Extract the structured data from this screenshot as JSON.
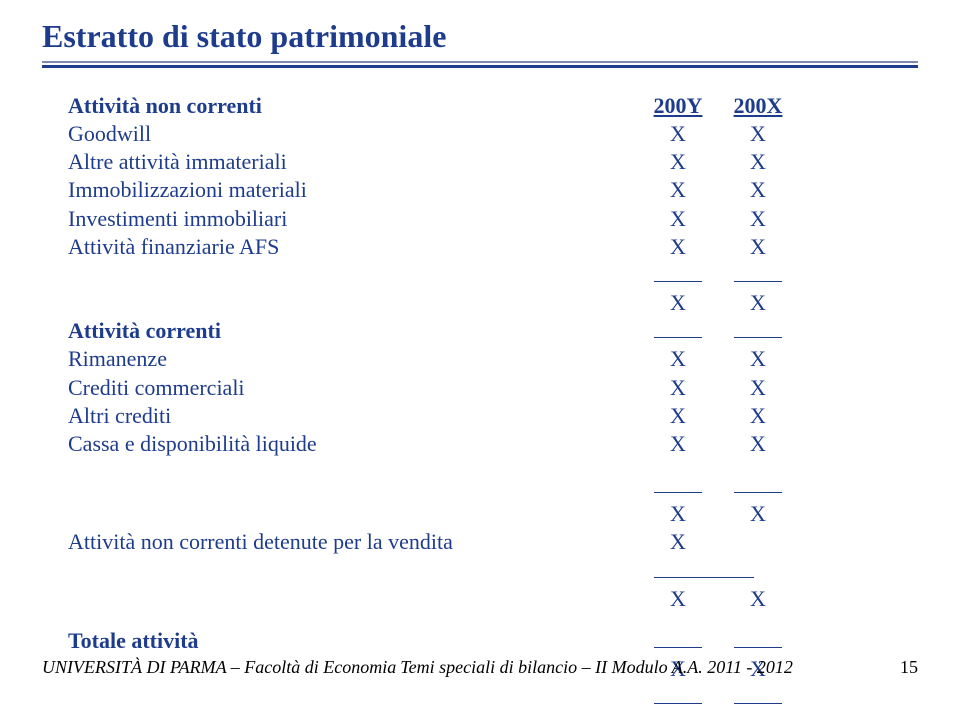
{
  "title": "Estratto di stato patrimoniale",
  "yearCols": {
    "y1": "200Y",
    "y2": "200X"
  },
  "sections": {
    "nonCurrentHeader": "Attività non correnti",
    "currentHeader": "Attività correnti",
    "heldForSale": "Attività non correnti detenute per la vendita",
    "totalAssets": "Totale attività"
  },
  "rows": {
    "goodwill": "Goodwill",
    "otherIntang": "Altre attività immateriali",
    "ppe": "Immobilizzazioni materiali",
    "invProp": "Investimenti immobiliari",
    "afs": "Attività finanziarie AFS",
    "inventories": "Rimanenze",
    "tradeRecv": "Crediti commerciali",
    "otherRecv": "Altri crediti",
    "cash": "Cassa e disponibilità liquide"
  },
  "val": "X",
  "footer": {
    "uni": "UNIVERSITÀ DI PARMA – Facoltà di Economia",
    "rest": "Temi speciali di bilancio – II Modulo A.A. 2011 - 2012",
    "page": "15"
  }
}
